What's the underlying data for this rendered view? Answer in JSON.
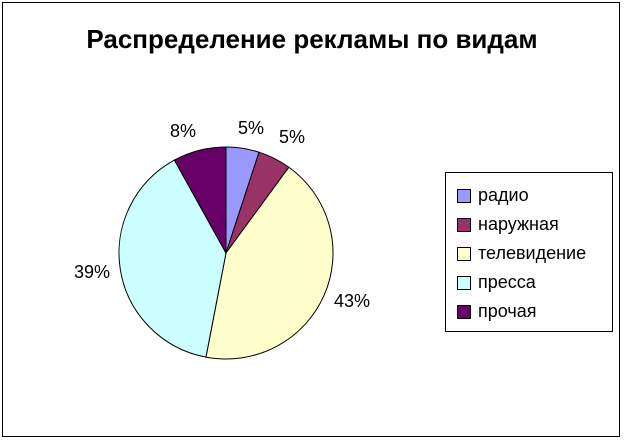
{
  "chart_data": {
    "type": "pie",
    "title": "Распределение рекламы по видам",
    "categories": [
      "радио",
      "наружная",
      "телевидение",
      "пресса",
      "прочая"
    ],
    "values": [
      5,
      5,
      43,
      39,
      8
    ],
    "value_labels": [
      "5%",
      "5%",
      "43%",
      "39%",
      "8%"
    ],
    "colors": [
      "#9999FF",
      "#993366",
      "#FFFFCC",
      "#CCFFFF",
      "#660066"
    ],
    "legend": "right"
  }
}
